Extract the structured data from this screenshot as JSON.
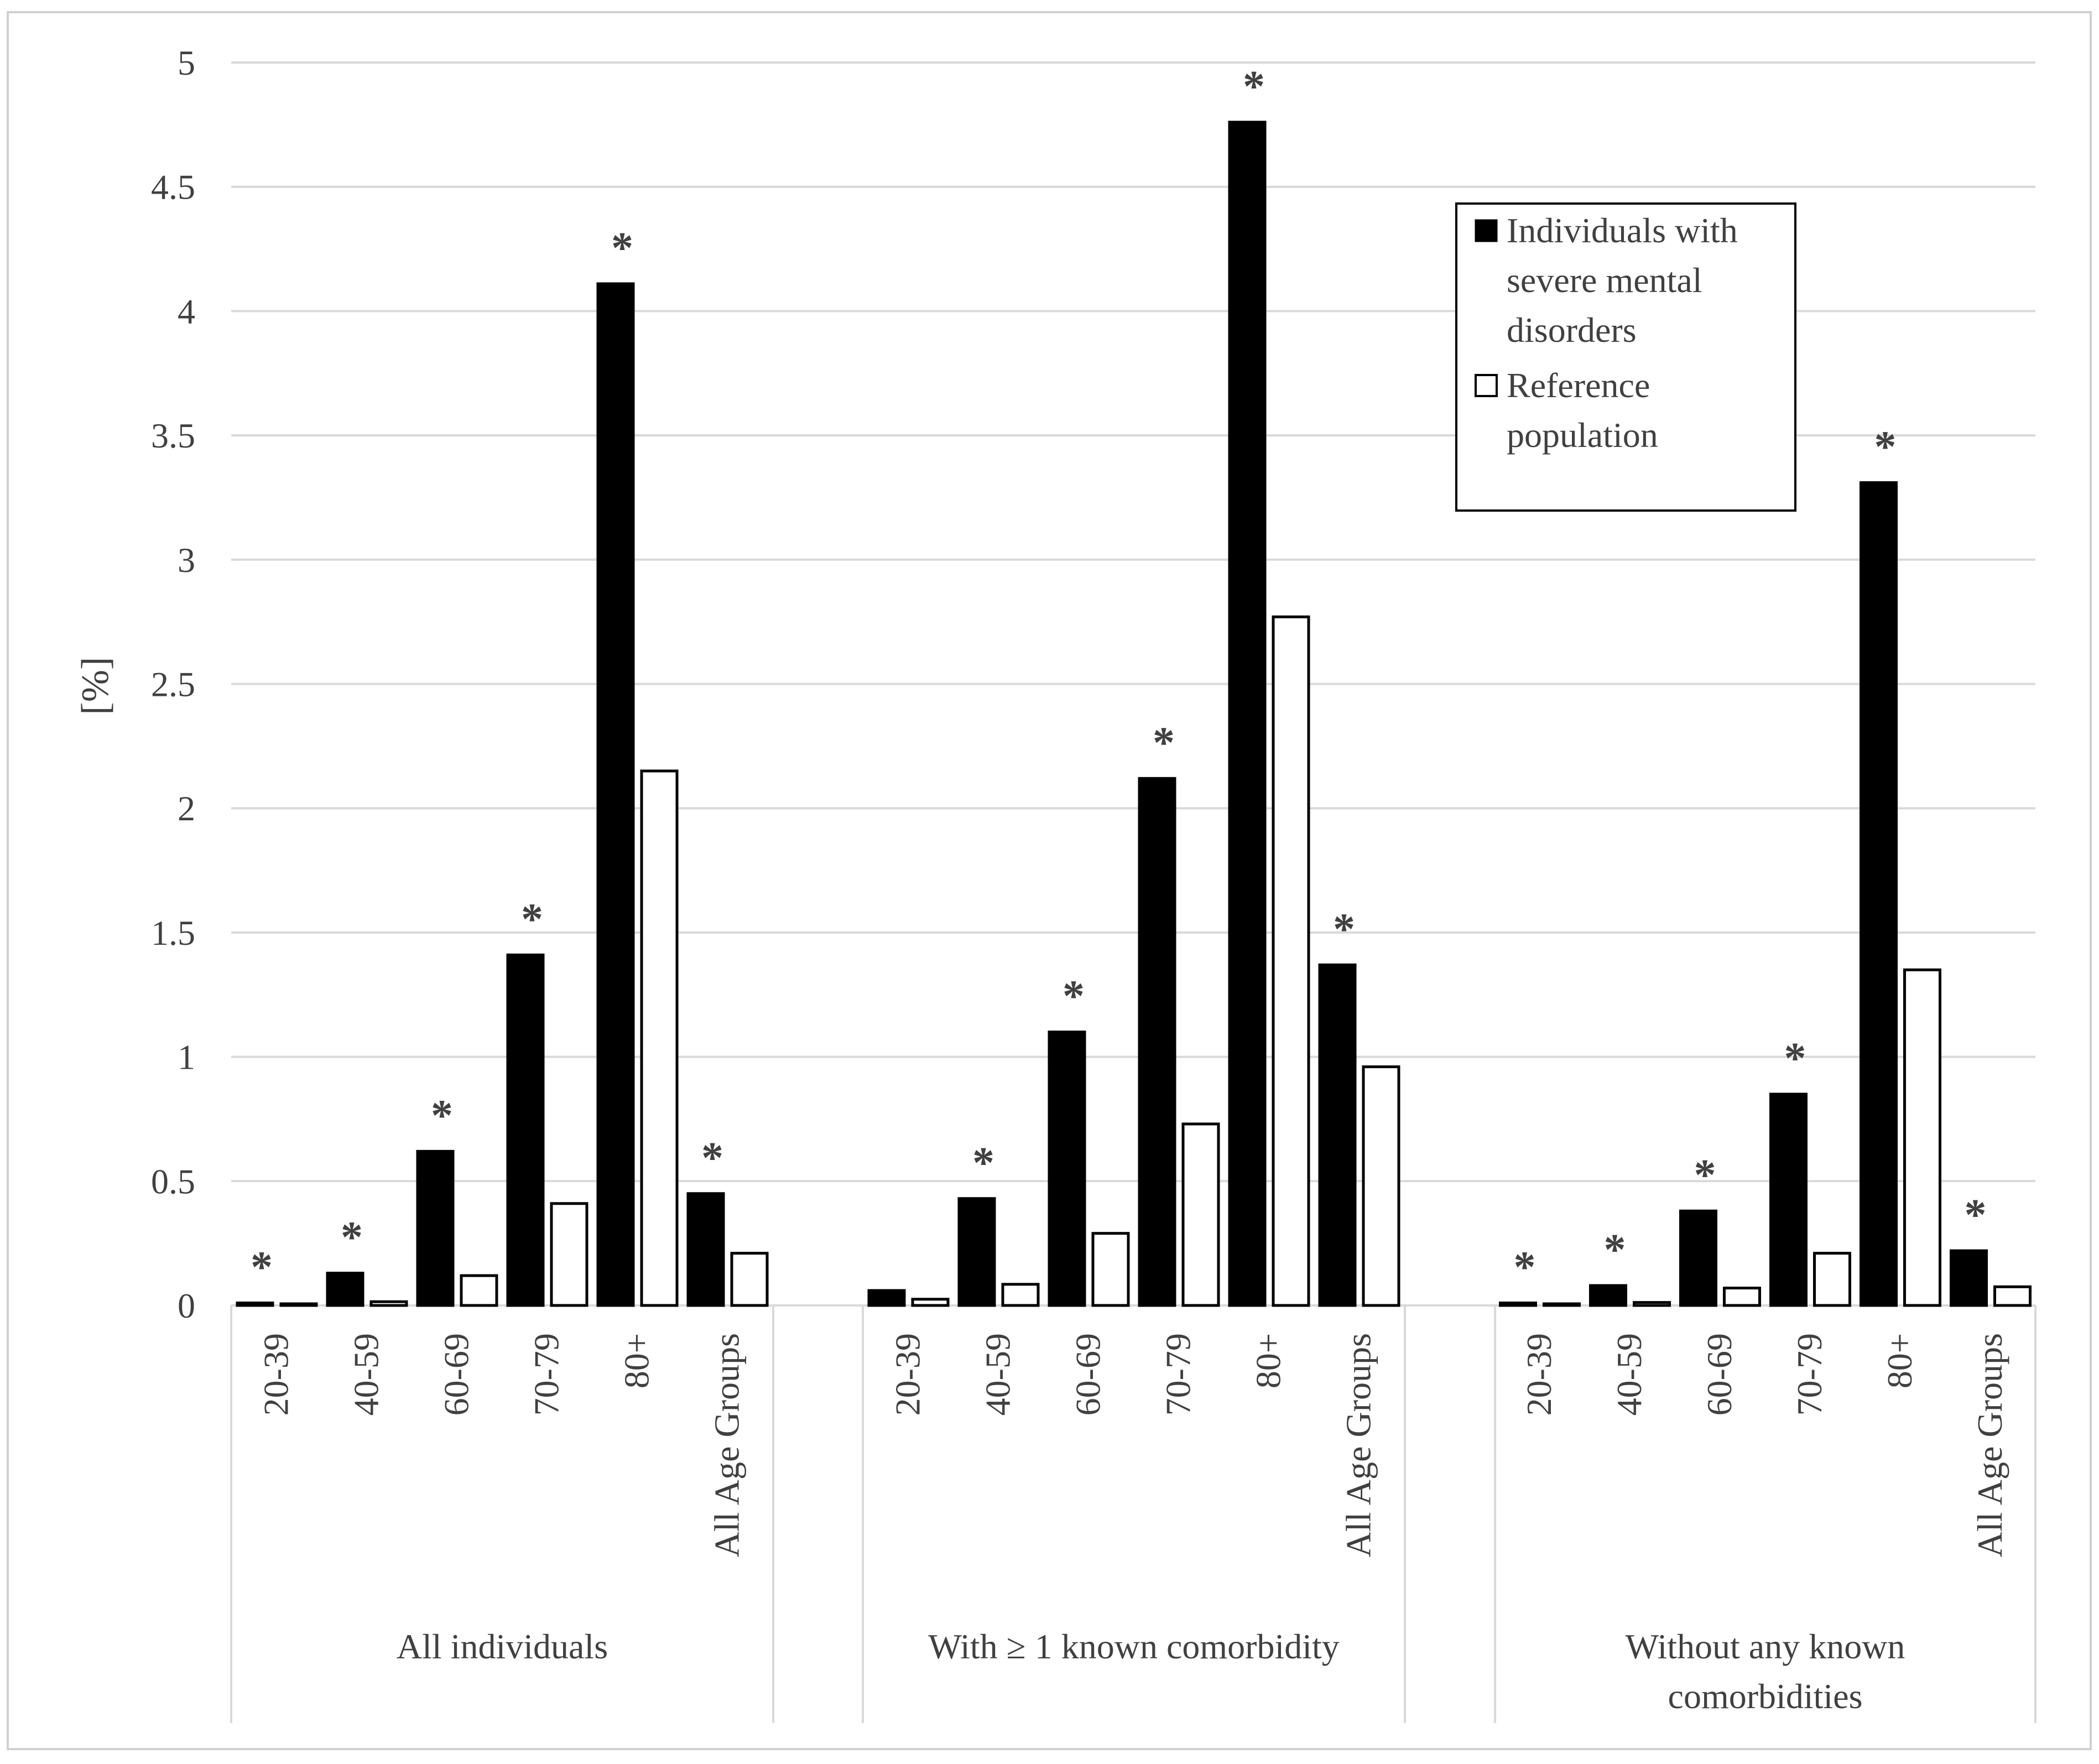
{
  "chart_data": {
    "type": "bar",
    "title": "",
    "xlabel": "",
    "ylabel": "[%]",
    "ylim": [
      0,
      5
    ],
    "yticks": [
      0,
      0.5,
      1,
      1.5,
      2,
      2.5,
      3,
      3.5,
      4,
      4.5,
      5
    ],
    "ytick_labels": [
      "0",
      "0.5",
      "1",
      "1.5",
      "2",
      "2.5",
      "3",
      "3.5",
      "4",
      "4.5",
      "5"
    ],
    "grid": true,
    "legend_position": "top-right",
    "significance_marker": "*",
    "series": [
      {
        "name": "Individuals with severe mental disorders",
        "color": "#000000"
      },
      {
        "name": "Reference population",
        "color": "#ffffff"
      }
    ],
    "groups": [
      {
        "label": "All individuals",
        "categories": [
          "20-39",
          "40-59",
          "60-69",
          "70-79",
          "80+",
          "All Age Groups"
        ],
        "values": [
          [
            0.01,
            0.13,
            0.62,
            1.41,
            4.11,
            0.45
          ],
          [
            0.005,
            0.015,
            0.12,
            0.41,
            2.15,
            0.21
          ]
        ],
        "significant": [
          true,
          true,
          true,
          true,
          true,
          true
        ]
      },
      {
        "label": "With ≥ 1 known comorbidity",
        "categories": [
          "20-39",
          "40-59",
          "60-69",
          "70-79",
          "80+",
          "All Age Groups"
        ],
        "values": [
          [
            0.06,
            0.43,
            1.1,
            2.12,
            4.76,
            1.37
          ],
          [
            0.025,
            0.085,
            0.29,
            0.73,
            2.77,
            0.96
          ]
        ],
        "significant": [
          false,
          true,
          true,
          true,
          true,
          true
        ]
      },
      {
        "label": "Without any known comorbidities",
        "categories": [
          "20-39",
          "40-59",
          "60-69",
          "70-79",
          "80+",
          "All Age Groups"
        ],
        "values": [
          [
            0.01,
            0.08,
            0.38,
            0.85,
            3.31,
            0.22
          ],
          [
            0.004,
            0.012,
            0.07,
            0.21,
            1.35,
            0.075
          ]
        ],
        "significant": [
          true,
          true,
          true,
          true,
          true,
          true
        ]
      }
    ]
  }
}
